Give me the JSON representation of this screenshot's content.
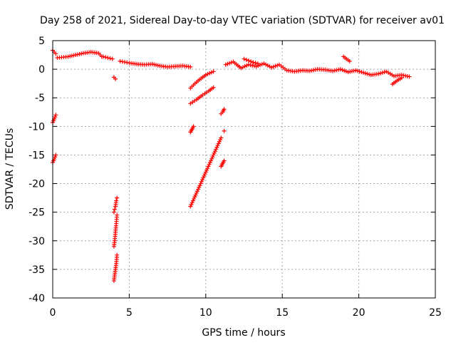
{
  "chart_data": {
    "type": "scatter",
    "title": "Day 258 of 2021, Sidereal Day-to-day VTEC variation (SDTVAR) for receiver av01",
    "xlabel": "GPS time / hours",
    "ylabel": "SDTVAR / TECUs",
    "xlim": [
      0,
      25
    ],
    "ylim": [
      -40,
      5
    ],
    "x_ticks": [
      0,
      5,
      10,
      15,
      20,
      25
    ],
    "y_ticks": [
      5,
      0,
      -5,
      -10,
      -15,
      -20,
      -25,
      -30,
      -35,
      -40
    ],
    "x_tick_labels": [
      "0",
      "5",
      "10",
      "15",
      "20",
      "25"
    ],
    "y_tick_labels": [
      "5",
      "0",
      "-5",
      "-10",
      "-15",
      "-20",
      "-25",
      "-30",
      "-35",
      "-40"
    ],
    "grid": true,
    "marker": "+",
    "series_color": "#ff0000",
    "series": [
      {
        "name": "SDTVAR av01",
        "segments": [
          {
            "x": [
              0.0,
              0.2
            ],
            "y": [
              3.3,
              2.7
            ]
          },
          {
            "x": [
              0.3,
              1.0,
              1.5,
              2.0,
              2.5,
              3.0,
              3.2
            ],
            "y": [
              2.0,
              2.2,
              2.5,
              2.8,
              3.0,
              2.8,
              2.2
            ]
          },
          {
            "x": [
              3.3,
              3.6,
              3.9
            ],
            "y": [
              2.2,
              2.0,
              1.8
            ]
          },
          {
            "x": [
              4.0,
              4.1
            ],
            "y": [
              -1.4,
              -1.7
            ]
          },
          {
            "x": [
              4.4,
              5.0,
              5.5,
              6.0,
              6.5,
              7.0,
              7.5,
              8.0,
              8.5,
              9.0
            ],
            "y": [
              1.4,
              1.1,
              0.9,
              0.8,
              0.9,
              0.6,
              0.4,
              0.5,
              0.6,
              0.4
            ]
          },
          {
            "x": [
              0.0,
              0.1,
              0.2
            ],
            "y": [
              -9.3,
              -8.7,
              -8.0
            ]
          },
          {
            "x": [
              0.0,
              0.1,
              0.2
            ],
            "y": [
              -16.3,
              -15.7,
              -15.0
            ]
          },
          {
            "x": [
              4.0,
              4.05,
              4.1,
              4.15,
              4.2
            ],
            "y": [
              -25.0,
              -24.5,
              -24.0,
              -23.0,
              -22.5
            ]
          },
          {
            "x": [
              4.0,
              4.05,
              4.1,
              4.15,
              4.2
            ],
            "y": [
              -31.0,
              -30.0,
              -28.5,
              -27.0,
              -25.5
            ]
          },
          {
            "x": [
              4.0,
              4.05,
              4.1,
              4.15,
              4.2
            ],
            "y": [
              -37.0,
              -36.0,
              -35.0,
              -34.0,
              -32.5
            ]
          },
          {
            "x": [
              9.0,
              9.3,
              9.6,
              10.0,
              10.5
            ],
            "y": [
              -3.3,
              -2.5,
              -1.8,
              -1.0,
              -0.4
            ]
          },
          {
            "x": [
              9.0,
              9.4,
              9.8,
              10.2,
              10.5
            ],
            "y": [
              -6.0,
              -5.3,
              -4.5,
              -3.8,
              -3.2
            ]
          },
          {
            "x": [
              9.0,
              9.1,
              9.2
            ],
            "y": [
              -11.0,
              -10.5,
              -10.0
            ]
          },
          {
            "x": [
              9.0,
              9.5,
              10.0,
              10.5,
              11.0
            ],
            "y": [
              -24.0,
              -21.0,
              -18.0,
              -15.0,
              -12.0
            ]
          },
          {
            "x": [
              11.0,
              11.1,
              11.2
            ],
            "y": [
              -7.8,
              -7.5,
              -7.0
            ]
          },
          {
            "x": [
              11.0,
              11.1,
              11.2
            ],
            "y": [
              -17.0,
              -16.5,
              -16.0
            ]
          },
          {
            "x": [
              11.2
            ],
            "y": [
              -10.8
            ]
          },
          {
            "x": [
              11.3,
              11.8,
              12.3,
              12.8,
              13.3,
              13.8,
              14.3,
              14.8,
              15.3,
              15.8,
              16.3,
              16.8,
              17.3,
              17.8,
              18.3,
              18.8,
              19.3,
              19.8,
              20.3,
              20.8,
              21.3,
              21.8,
              22.3,
              22.8,
              23.3
            ],
            "y": [
              0.8,
              1.3,
              0.2,
              0.8,
              0.5,
              1.0,
              0.3,
              0.8,
              -0.2,
              -0.4,
              -0.2,
              -0.3,
              0.0,
              -0.1,
              -0.3,
              0.0,
              -0.5,
              -0.2,
              -0.6,
              -1.0,
              -0.8,
              -0.4,
              -1.2,
              -1.0,
              -1.3
            ]
          },
          {
            "x": [
              12.5,
              12.8,
              13.1,
              13.4
            ],
            "y": [
              1.8,
              1.5,
              1.2,
              1.0
            ]
          },
          {
            "x": [
              19.0,
              19.2,
              19.4
            ],
            "y": [
              2.2,
              1.8,
              1.4
            ]
          },
          {
            "x": [
              22.2,
              22.5,
              22.8
            ],
            "y": [
              -2.6,
              -2.0,
              -1.5
            ]
          }
        ]
      }
    ]
  }
}
